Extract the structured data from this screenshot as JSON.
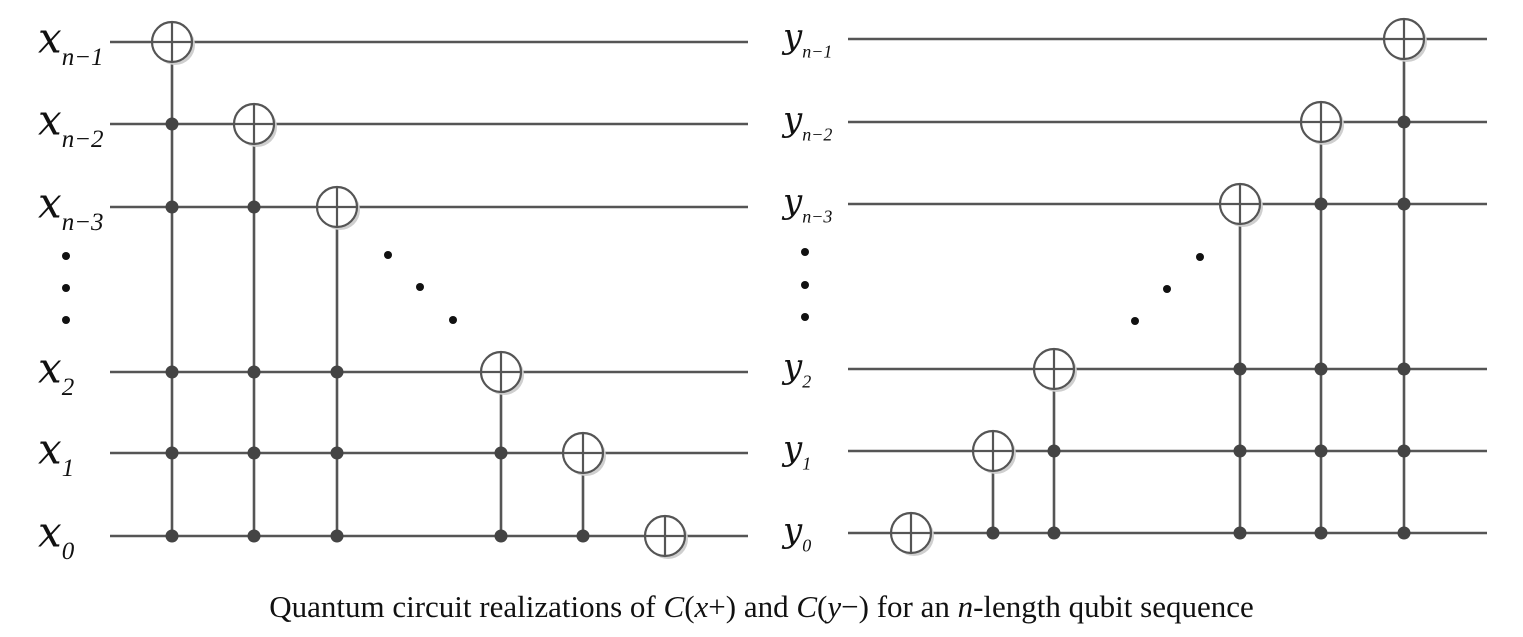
{
  "left_circuit": {
    "labels": [
      {
        "base": "x",
        "sub": "n−1"
      },
      {
        "base": "x",
        "sub": "n−2"
      },
      {
        "base": "x",
        "sub": "n−3"
      },
      {
        "base": "x",
        "sub": "2"
      },
      {
        "base": "x",
        "sub": "1"
      },
      {
        "base": "x",
        "sub": "0"
      }
    ],
    "gates": [
      {
        "target": 0,
        "controls": [
          1,
          2,
          3,
          4,
          5
        ]
      },
      {
        "target": 1,
        "controls": [
          2,
          3,
          4,
          5
        ]
      },
      {
        "target": 2,
        "controls": [
          3,
          4,
          5
        ]
      },
      {
        "target": 3,
        "controls": [
          4,
          5
        ]
      },
      {
        "target": 4,
        "controls": [
          5
        ]
      },
      {
        "target": 5,
        "controls": []
      }
    ]
  },
  "right_circuit": {
    "labels": [
      {
        "base": "y",
        "sub": "n−1"
      },
      {
        "base": "y",
        "sub": "n−2"
      },
      {
        "base": "y",
        "sub": "n−3"
      },
      {
        "base": "y",
        "sub": "2"
      },
      {
        "base": "y",
        "sub": "1"
      },
      {
        "base": "y",
        "sub": "0"
      }
    ],
    "gates": [
      {
        "target": 5,
        "controls": []
      },
      {
        "target": 4,
        "controls": [
          5
        ]
      },
      {
        "target": 3,
        "controls": [
          4,
          5
        ]
      },
      {
        "target": 2,
        "controls": [
          3,
          4,
          5
        ]
      },
      {
        "target": 1,
        "controls": [
          2,
          3,
          4,
          5
        ]
      },
      {
        "target": 0,
        "controls": [
          1,
          2,
          3,
          4,
          5
        ]
      }
    ]
  },
  "caption": {
    "part1": "Quantum circuit realizations of ",
    "c1": "C",
    "arg1": "(",
    "var1": "x",
    "op1": "+)",
    "and": " and ",
    "c2": "C",
    "arg2": "(",
    "var2": "y",
    "op2": "−)",
    "part2": " for an ",
    "n": "n",
    "part3": "-length qubit sequence"
  }
}
